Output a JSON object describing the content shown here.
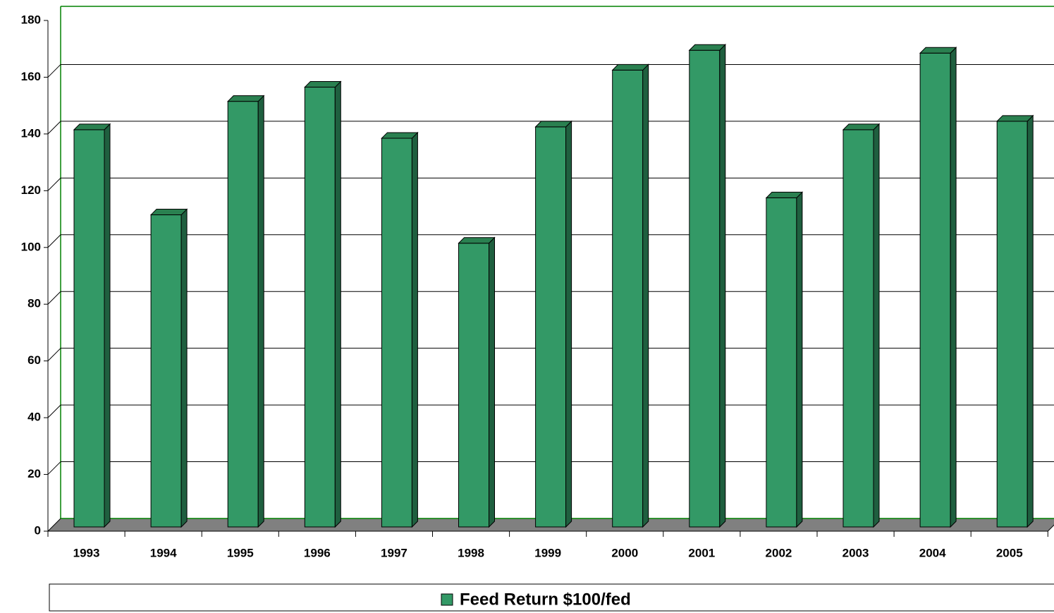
{
  "chart_data": {
    "type": "bar",
    "categories": [
      "1993",
      "1994",
      "1995",
      "1996",
      "1997",
      "1998",
      "1999",
      "2000",
      "2001",
      "2002",
      "2003",
      "2004",
      "2005"
    ],
    "series": [
      {
        "name": "Feed Return $100/fed",
        "color": "#339966",
        "values": [
          140,
          110,
          150,
          155,
          137,
          100,
          141,
          161,
          168,
          116,
          140,
          167,
          143
        ]
      }
    ],
    "ylim": [
      0,
      180
    ],
    "yticks": [
      0,
      20,
      40,
      60,
      80,
      100,
      120,
      140,
      160,
      180
    ],
    "grid": true,
    "legend": "bottom"
  }
}
